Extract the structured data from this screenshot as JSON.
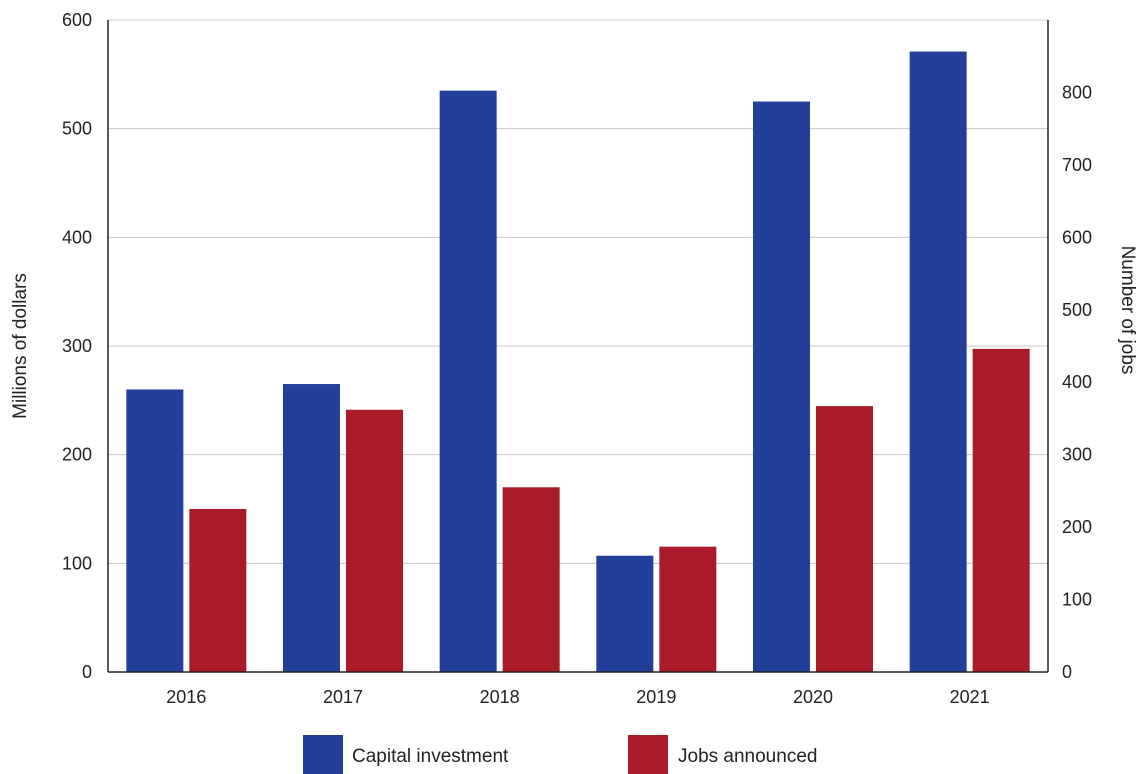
{
  "chart_data": {
    "type": "bar",
    "categories": [
      "2016",
      "2017",
      "2018",
      "2019",
      "2020",
      "2021"
    ],
    "series": [
      {
        "name": "Capital investment",
        "axis": "left",
        "color": "#22409a",
        "values": [
          260,
          265,
          535,
          107,
          525,
          571
        ]
      },
      {
        "name": "Jobs announced",
        "axis": "right",
        "color": "#aa1a28",
        "values": [
          225,
          362,
          255,
          173,
          367,
          446
        ]
      }
    ],
    "left_axis": {
      "label": "Millions of dollars",
      "ylim": [
        0,
        600
      ],
      "ticks": [
        "0",
        "100",
        "200",
        "300",
        "400",
        "500",
        "600"
      ]
    },
    "right_axis": {
      "label": "Number of jobs",
      "ylim": [
        0,
        900
      ],
      "tick_values": [
        0,
        100,
        200,
        300,
        400,
        500,
        600,
        700,
        800
      ],
      "ticks": [
        "0",
        "100",
        "200",
        "300",
        "400",
        "500",
        "600",
        "700",
        "800"
      ]
    },
    "grid": true,
    "legend": "bottom"
  }
}
